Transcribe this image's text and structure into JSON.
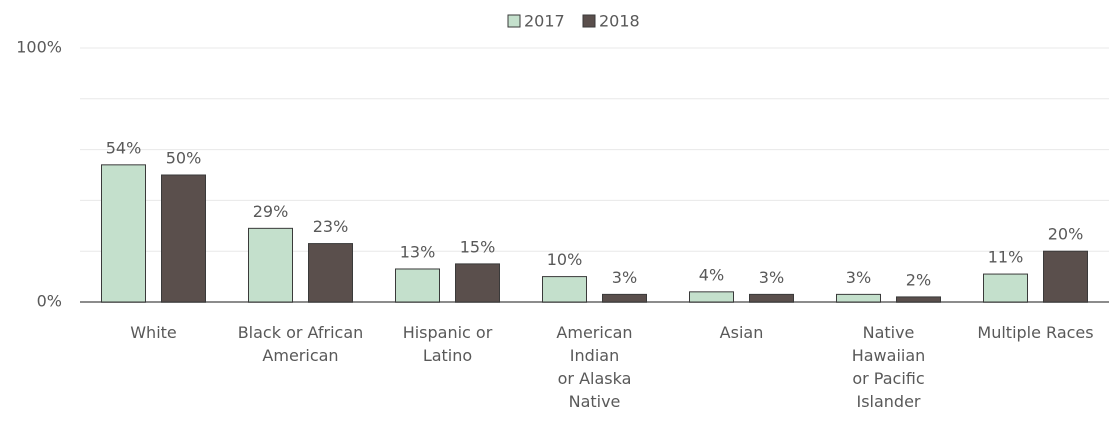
{
  "chart_data": {
    "type": "bar",
    "categories": [
      "White",
      "Black or African\nAmerican",
      "Hispanic or\nLatino",
      "American\nIndian\nor Alaska\nNative",
      "Asian",
      "Native\nHawaiian\nor Pacific\nIslander",
      "Multiple Races"
    ],
    "series": [
      {
        "name": "2017",
        "color": "#c4e0cc",
        "values": [
          54,
          29,
          13,
          10,
          4,
          3,
          11
        ],
        "value_labels": [
          "54%",
          "29%",
          "13%",
          "10%",
          "4%",
          "3%",
          "11%"
        ]
      },
      {
        "name": "2018",
        "color": "#5a4f4c",
        "values": [
          50,
          23,
          15,
          3,
          3,
          2,
          20
        ],
        "value_labels": [
          "50%",
          "23%",
          "15%",
          "3%",
          "3%",
          "2%",
          "20%"
        ]
      }
    ],
    "ylim": [
      0,
      100
    ],
    "yticks": [
      {
        "value": 0,
        "label": "0%"
      },
      {
        "value": 100,
        "label": "100%"
      }
    ],
    "minor_yticks": [
      20,
      40,
      60,
      80
    ],
    "grid": true,
    "legend": "top"
  }
}
